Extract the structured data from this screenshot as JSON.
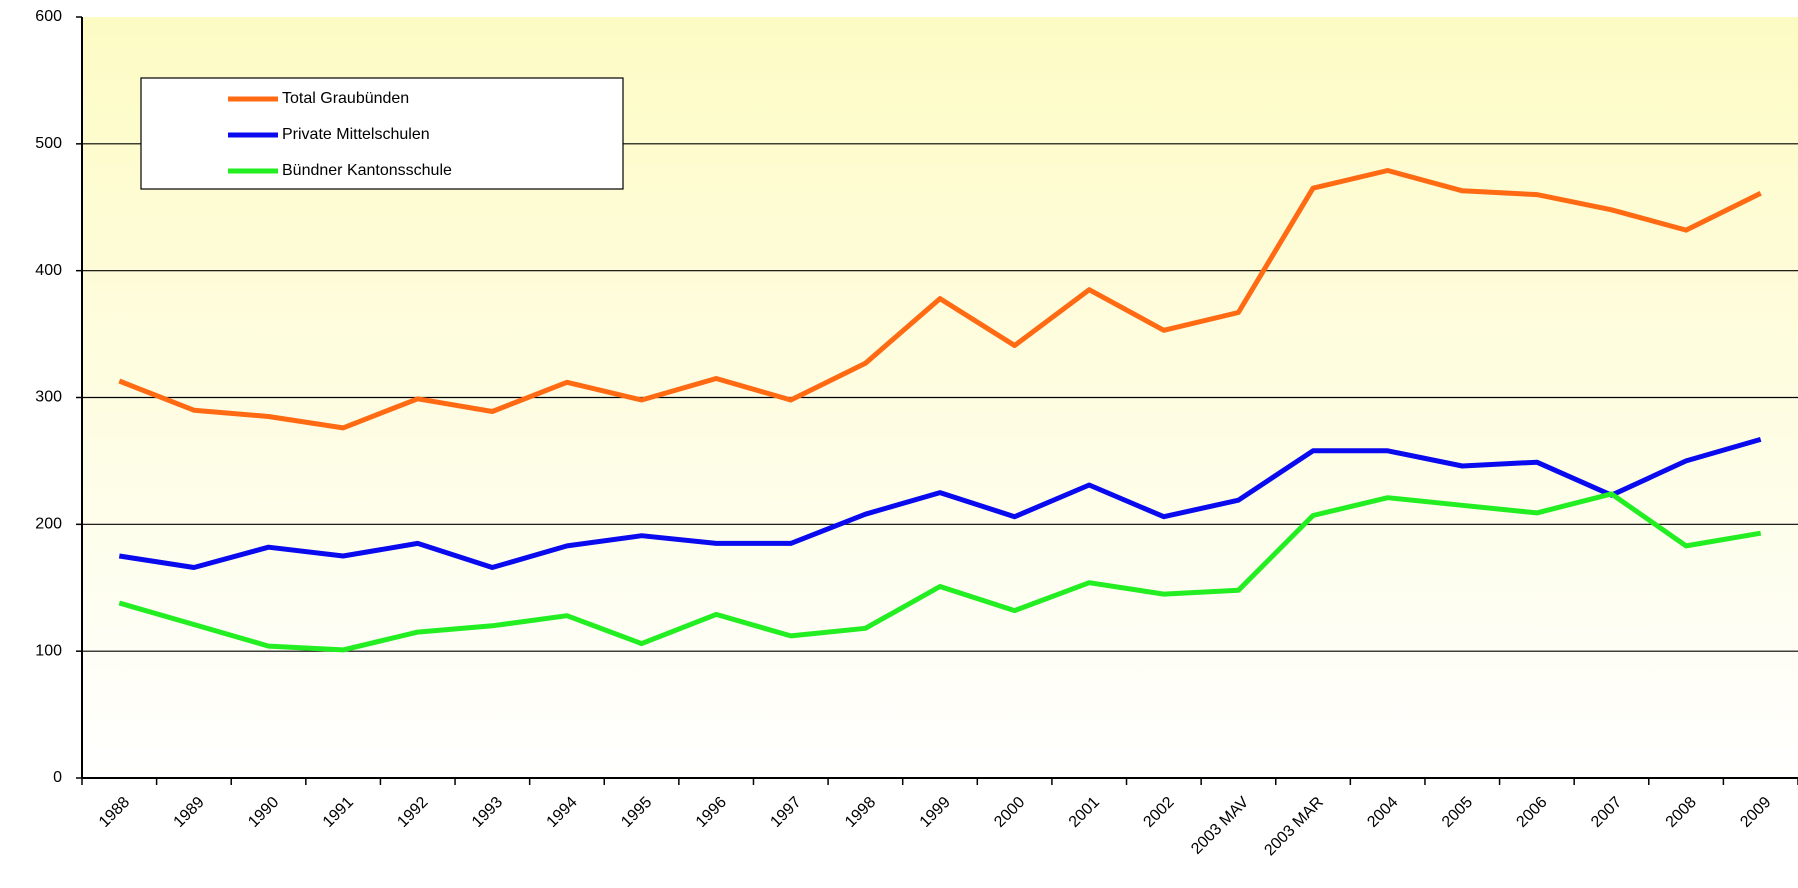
{
  "chart_data": {
    "type": "line",
    "categories": [
      "1988",
      "1989",
      "1990",
      "1991",
      "1992",
      "1993",
      "1994",
      "1995",
      "1996",
      "1997",
      "1998",
      "1999",
      "2000",
      "2001",
      "2002",
      "2003 MAV",
      "2003 MAR",
      "2004",
      "2005",
      "2006",
      "2007",
      "2008",
      "2009"
    ],
    "series": [
      {
        "name": "Total Graubünden",
        "color": "#ff6a13",
        "values": [
          313,
          290,
          285,
          276,
          299,
          289,
          312,
          298,
          315,
          298,
          327,
          378,
          341,
          385,
          353,
          367,
          465,
          479,
          463,
          460,
          448,
          432,
          461
        ]
      },
      {
        "name": "Private Mittelschulen",
        "color": "#0a0aee",
        "values": [
          175,
          166,
          182,
          175,
          185,
          166,
          183,
          191,
          185,
          185,
          208,
          225,
          206,
          231,
          206,
          219,
          258,
          258,
          246,
          249,
          223,
          250,
          267
        ]
      },
      {
        "name": "Bündner Kantonsschule",
        "color": "#22ee22",
        "values": [
          138,
          121,
          104,
          101,
          115,
          120,
          128,
          106,
          129,
          112,
          118,
          151,
          132,
          154,
          145,
          148,
          207,
          221,
          215,
          209,
          224,
          183,
          193
        ]
      }
    ],
    "ylim": [
      0,
      600
    ],
    "yticks": [
      0,
      100,
      200,
      300,
      400,
      500,
      600
    ],
    "grid": true
  }
}
